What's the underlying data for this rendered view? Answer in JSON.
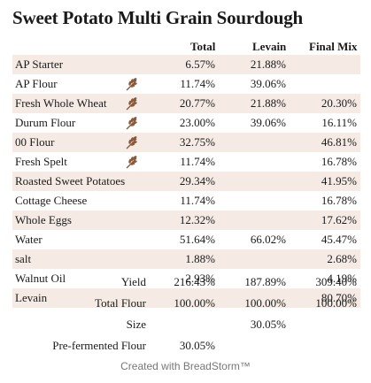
{
  "title": "Sweet Potato Multi Grain Sourdough",
  "headers": {
    "total": "Total",
    "levain": "Levain",
    "final_mix": "Final Mix"
  },
  "ingredients": [
    {
      "name": "AP Starter",
      "grain": false,
      "total": "6.57%",
      "levain": "21.88%",
      "final": ""
    },
    {
      "name": "AP Flour",
      "grain": true,
      "total": "11.74%",
      "levain": "39.06%",
      "final": ""
    },
    {
      "name": "Fresh Whole Wheat",
      "grain": true,
      "total": "20.77%",
      "levain": "21.88%",
      "final": "20.30%"
    },
    {
      "name": "Durum Flour",
      "grain": true,
      "total": "23.00%",
      "levain": "39.06%",
      "final": "16.11%"
    },
    {
      "name": "00 Flour",
      "grain": true,
      "total": "32.75%",
      "levain": "",
      "final": "46.81%"
    },
    {
      "name": "Fresh Spelt",
      "grain": true,
      "total": "11.74%",
      "levain": "",
      "final": "16.78%"
    },
    {
      "name": "Roasted Sweet Potatoes",
      "grain": false,
      "total": "29.34%",
      "levain": "",
      "final": "41.95%"
    },
    {
      "name": "Cottage Cheese",
      "grain": false,
      "total": "11.74%",
      "levain": "",
      "final": "16.78%"
    },
    {
      "name": "Whole Eggs",
      "grain": false,
      "total": "12.32%",
      "levain": "",
      "final": "17.62%"
    },
    {
      "name": "Water",
      "grain": false,
      "total": "51.64%",
      "levain": "66.02%",
      "final": "45.47%"
    },
    {
      "name": "salt",
      "grain": false,
      "total": "1.88%",
      "levain": "",
      "final": "2.68%"
    },
    {
      "name": "Walnut Oil",
      "grain": false,
      "total": "2.93%",
      "levain": "",
      "final": "4.19%"
    },
    {
      "name": "Levain",
      "grain": false,
      "total": "",
      "levain": "",
      "final": "80.70%"
    }
  ],
  "summary": [
    {
      "label": "Yield",
      "total": "216.43%",
      "levain": "187.89%",
      "final": "309.40%"
    },
    {
      "label": "Total Flour",
      "total": "100.00%",
      "levain": "100.00%",
      "final": "100.00%"
    },
    {
      "label": "Size",
      "total": "",
      "levain": "30.05%",
      "final": ""
    },
    {
      "label": "Pre-fermented Flour",
      "total": "30.05%",
      "levain": "",
      "final": ""
    }
  ],
  "footer": "Created with BreadStorm™",
  "colors": {
    "row_shade": "#f5ebe4",
    "grain_icon": "#8a5a3c",
    "footer_text": "#777777"
  },
  "icons": {
    "grain": "wheat-icon"
  }
}
